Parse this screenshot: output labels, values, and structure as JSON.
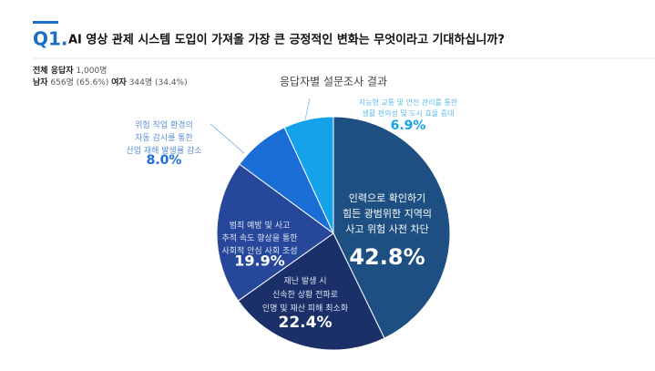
{
  "header": {
    "number": "Q1.",
    "question": "AI 영상 관제 시스템 도입이 가져올 가장 큰 긍정적인 변화는 무엇이라고 기대하십니까?"
  },
  "respondents": {
    "total_label": "전체 응답자",
    "total": "1,000명",
    "male_label": "남자",
    "male": "656명 (65.6%)",
    "female_label": "여자",
    "female": "344명 (34.4%)"
  },
  "chart_data": {
    "type": "pie",
    "title": "응답자별 설문조사 결과",
    "categories": [
      "인력으로 확인하기\n힘든 광범위한 지역의\n사고 위험 사전 차단",
      "재난 발생 시\n신속한 상황 전파로\n인명 및 재산 피해 최소화",
      "범죄 예방 및 사고\n추적 속도 향상을 통한\n사회적 안심 사회 조성",
      "위험 작업 환경의\n자동 감시를 통한\n산업 재해 발생률 감소",
      "지능형 교통 및 안전 관리를 통한\n생활 편의성 및 도시 효율 증대"
    ],
    "values": [
      42.8,
      22.4,
      19.9,
      8.0,
      6.9
    ],
    "value_labels": [
      "42.8%",
      "22.4%",
      "19.9%",
      "8.0%",
      "6.9%"
    ],
    "colors": [
      "#1e4f82",
      "#1b2f69",
      "#27489a",
      "#1a6ed6",
      "#14a3ea"
    ]
  }
}
